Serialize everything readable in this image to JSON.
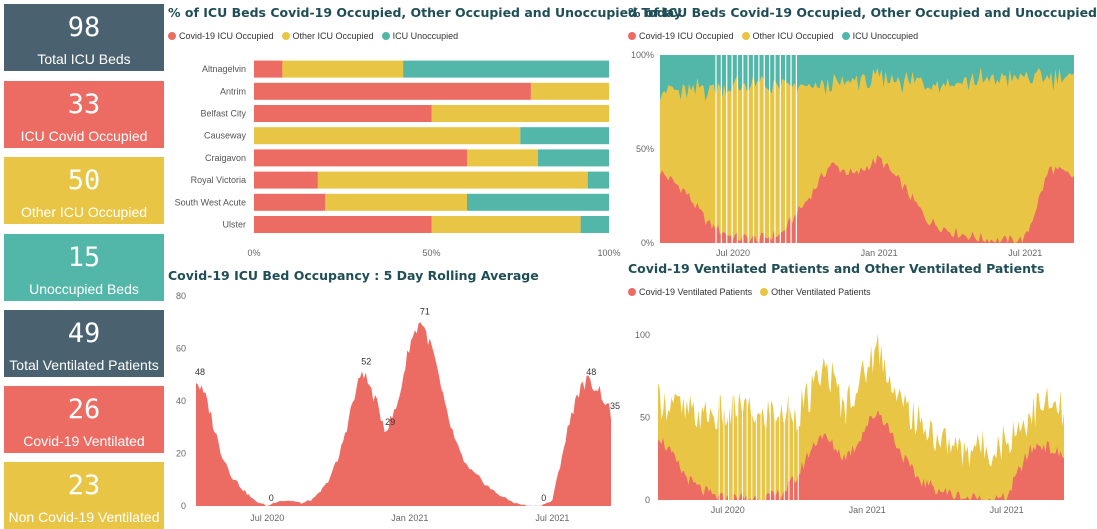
{
  "colors": {
    "covid": "#ec6c63",
    "other": "#e8c544",
    "unoccupied": "#52b7a8",
    "dark": "#4a6270"
  },
  "kpis": [
    {
      "value": "98",
      "label": "Total ICU Beds",
      "color": "#4a6270"
    },
    {
      "value": "33",
      "label": "ICU Covid Occupied",
      "color": "#ec6c63"
    },
    {
      "value": "50",
      "label": "Other ICU Occupied",
      "color": "#e8c544"
    },
    {
      "value": "15",
      "label": "Unoccupied Beds",
      "color": "#52b7a8"
    },
    {
      "value": "49",
      "label": "Total Ventilated Patients",
      "color": "#4a6270"
    },
    {
      "value": "26",
      "label": "Covid-19 Ventilated",
      "color": "#ec6c63"
    },
    {
      "value": "23",
      "label": "Non Covid-19 Ventilated",
      "color": "#e8c544"
    }
  ],
  "chart_data": [
    {
      "type": "bar",
      "stacked": true,
      "orientation": "horizontal",
      "percent": true,
      "title": "% of ICU Beds Covid-19 Occupied, Other Occupied and Unoccupied Today",
      "legend": [
        "Covid-19 ICU Occupied",
        "Other ICU Occupied",
        "ICU Unoccupied"
      ],
      "legend_position": "top-left",
      "categories": [
        "Altnagelvin",
        "Antrim",
        "Belfast City",
        "Causeway",
        "Craigavon",
        "Royal Victoria",
        "South West Acute",
        "Ulster"
      ],
      "series": [
        {
          "name": "Covid-19 ICU Occupied",
          "values": [
            8,
            78,
            50,
            0,
            60,
            18,
            20,
            50
          ]
        },
        {
          "name": "Other ICU Occupied",
          "values": [
            34,
            22,
            50,
            75,
            20,
            76,
            40,
            42
          ]
        },
        {
          "name": "ICU Unoccupied",
          "values": [
            58,
            0,
            0,
            25,
            20,
            6,
            40,
            8
          ]
        }
      ],
      "xticks": [
        "0%",
        "50%",
        "100%"
      ],
      "xlim": [
        0,
        100
      ]
    },
    {
      "type": "area",
      "stacked": true,
      "percent": true,
      "title": "% of ICU Beds Covid-19 Occupied, Other Occupied and Unoccupied",
      "legend": [
        "Covid-19 ICU Occupied",
        "Other ICU Occupied",
        "ICU Unoccupied"
      ],
      "legend_position": "top-left",
      "xticks": [
        "Jul 2020",
        "Jan 2021",
        "Jul 2021"
      ],
      "yticks": [
        "0%",
        "50%",
        "100%"
      ],
      "ylim": [
        0,
        100
      ],
      "x": [
        "2020-04",
        "2020-05",
        "2020-06",
        "2020-07",
        "2020-08",
        "2020-09",
        "2020-10",
        "2020-11",
        "2020-12",
        "2021-01",
        "2021-02",
        "2021-03",
        "2021-04",
        "2021-05",
        "2021-06",
        "2021-07",
        "2021-08",
        "2021-09"
      ],
      "series": [
        {
          "name": "Covid-19 ICU Occupied",
          "values": [
            38,
            28,
            10,
            3,
            2,
            5,
            22,
            42,
            36,
            45,
            30,
            12,
            6,
            3,
            1,
            2,
            40,
            35
          ]
        },
        {
          "name": "Other ICU Occupied",
          "values": [
            44,
            52,
            72,
            80,
            82,
            78,
            60,
            42,
            50,
            42,
            56,
            74,
            80,
            84,
            86,
            86,
            48,
            52
          ]
        }
      ]
    },
    {
      "type": "area",
      "title": "Covid-19 ICU Bed Occupancy : 5 Day Rolling Average",
      "yticks": [
        "0",
        "20",
        "40",
        "60",
        "80"
      ],
      "xticks": [
        "Jul 2020",
        "Jan 2021",
        "Jul 2021"
      ],
      "ylim": [
        0,
        80
      ],
      "x": [
        "2020-04-01",
        "2020-04-15",
        "2020-05-01",
        "2020-05-15",
        "2020-06-01",
        "2020-06-15",
        "2020-07-01",
        "2020-07-15",
        "2020-08-01",
        "2020-08-15",
        "2020-09-01",
        "2020-09-15",
        "2020-10-01",
        "2020-10-15",
        "2020-11-01",
        "2020-11-15",
        "2020-12-01",
        "2020-12-15",
        "2021-01-01",
        "2021-01-15",
        "2021-02-01",
        "2021-02-15",
        "2021-03-01",
        "2021-03-15",
        "2021-04-01",
        "2021-04-15",
        "2021-05-01",
        "2021-05-15",
        "2021-06-01",
        "2021-06-15",
        "2021-07-01",
        "2021-07-15",
        "2021-08-01",
        "2021-08-15",
        "2021-09-01",
        "2021-09-15"
      ],
      "values": [
        48,
        40,
        22,
        12,
        6,
        2,
        0,
        2,
        2,
        1,
        3,
        8,
        18,
        35,
        52,
        42,
        29,
        38,
        62,
        71,
        58,
        38,
        22,
        14,
        10,
        6,
        3,
        1,
        0,
        0,
        2,
        22,
        42,
        48,
        44,
        35
      ],
      "data_labels": [
        {
          "x": "2020-04-01",
          "value": "48"
        },
        {
          "x": "2020-07-01",
          "value": "0"
        },
        {
          "x": "2020-11-01",
          "value": "52"
        },
        {
          "x": "2020-12-01",
          "value": "29"
        },
        {
          "x": "2021-01-15",
          "value": "71"
        },
        {
          "x": "2021-06-15",
          "value": "0"
        },
        {
          "x": "2021-08-15",
          "value": "48"
        },
        {
          "x": "2021-09-15",
          "value": "35"
        }
      ]
    },
    {
      "type": "area",
      "stacked": true,
      "title": "Covid-19 Ventilated Patients and Other Ventilated Patients",
      "legend": [
        "Covid-19 Ventilated Patients",
        "Other Ventilated Patients"
      ],
      "legend_position": "top-left",
      "yticks": [
        "0",
        "50",
        "100"
      ],
      "xticks": [
        "Jul 2020",
        "Jan 2021",
        "Jul 2021"
      ],
      "ylim": [
        0,
        115
      ],
      "x": [
        "2020-04-01",
        "2020-04-15",
        "2020-05-01",
        "2020-05-15",
        "2020-06-01",
        "2020-06-15",
        "2020-07-01",
        "2020-07-15",
        "2020-08-01",
        "2020-08-15",
        "2020-09-01",
        "2020-09-15",
        "2020-10-01",
        "2020-10-15",
        "2020-11-01",
        "2020-11-15",
        "2020-12-01",
        "2020-12-15",
        "2021-01-01",
        "2021-01-15",
        "2021-02-01",
        "2021-02-15",
        "2021-03-01",
        "2021-03-15",
        "2021-04-01",
        "2021-04-15",
        "2021-05-01",
        "2021-05-15",
        "2021-06-01",
        "2021-06-15",
        "2021-07-01",
        "2021-07-15",
        "2021-08-01",
        "2021-08-15",
        "2021-09-01",
        "2021-09-15"
      ],
      "series": [
        {
          "name": "Covid-19 Ventilated Patients",
          "values": [
            40,
            30,
            18,
            10,
            5,
            2,
            0,
            1,
            1,
            1,
            2,
            6,
            14,
            28,
            40,
            34,
            26,
            32,
            46,
            54,
            42,
            28,
            16,
            10,
            7,
            4,
            2,
            1,
            0,
            0,
            1,
            16,
            30,
            34,
            30,
            26
          ]
        },
        {
          "name": "Other Ventilated Patients",
          "values": [
            24,
            28,
            36,
            40,
            44,
            48,
            50,
            55,
            52,
            48,
            50,
            46,
            40,
            32,
            38,
            40,
            30,
            36,
            34,
            40,
            32,
            30,
            32,
            34,
            32,
            30,
            28,
            30,
            32,
            30,
            34,
            26,
            22,
            24,
            26,
            26
          ]
        }
      ]
    }
  ]
}
